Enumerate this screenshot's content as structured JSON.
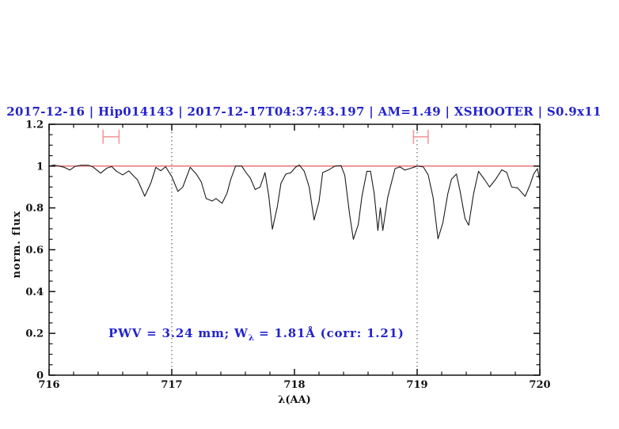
{
  "figure": {
    "annotation": {
      "prefix": "PWV = 3.24 mm; W",
      "subscript": "λ",
      "suffix": " = 1.81Å (corr: 1.21)"
    }
  },
  "chart_data": {
    "type": "line",
    "title": "2017-12-16 | Hip014143 | 2017-12-17T04:37:43.197 | AM=1.49 | XSHOOTER | S0.9x11",
    "xlabel": "λ(AA)",
    "ylabel": "norm. flux",
    "xlim": [
      716,
      720
    ],
    "ylim": [
      0,
      1.2
    ],
    "x_ticks": [
      716,
      717,
      718,
      719,
      720
    ],
    "x_tick_labels": [
      "716",
      "717",
      "718",
      "719",
      "720"
    ],
    "y_ticks": [
      0,
      0.2,
      0.4,
      0.6,
      0.8,
      1.0,
      1.2
    ],
    "y_tick_labels": [
      "0",
      "0.2",
      "0.4",
      "0.6",
      "0.8",
      "1",
      "1.2"
    ],
    "x_minor_step": 0.2,
    "y_minor_step": 0.05,
    "grid": "off",
    "legend": "none",
    "dotted_vlines_x": [
      717,
      719
    ],
    "continuum_level": 1.0,
    "colors": {
      "title_blue": "#2323cd",
      "spectrum_line": "#1c1c1c",
      "continuum_red": "#e96a6a",
      "marker_pink": "#f29b9b",
      "dotted_line": "#444444"
    },
    "range_markers": [
      {
        "x_min": 716.44,
        "x_max": 716.57,
        "y": 1.14,
        "y_half": 0.034
      },
      {
        "x_min": 718.97,
        "x_max": 719.09,
        "y": 1.14,
        "y_half": 0.034
      }
    ],
    "annotation": {
      "text": "PWV = 3.24 mm; W_λ = 1.81Å (corr: 1.21)",
      "x": 716.48,
      "y": 0.2
    },
    "series": [
      {
        "name": "observed spectrum",
        "points": [
          [
            716.0,
            1.0
          ],
          [
            716.04,
            1.005
          ],
          [
            716.08,
            1.0
          ],
          [
            716.12,
            0.995
          ],
          [
            716.17,
            0.981
          ],
          [
            716.21,
            0.998
          ],
          [
            716.26,
            1.004
          ],
          [
            716.32,
            1.004
          ],
          [
            716.36,
            0.995
          ],
          [
            716.42,
            0.966
          ],
          [
            716.47,
            0.99
          ],
          [
            716.51,
            0.998
          ],
          [
            716.55,
            0.975
          ],
          [
            716.6,
            0.958
          ],
          [
            716.65,
            0.977
          ],
          [
            716.69,
            0.952
          ],
          [
            716.72,
            0.935
          ],
          [
            716.78,
            0.856
          ],
          [
            716.83,
            0.92
          ],
          [
            716.87,
            0.994
          ],
          [
            716.91,
            0.978
          ],
          [
            716.95,
            0.997
          ],
          [
            717.0,
            0.95
          ],
          [
            717.05,
            0.879
          ],
          [
            717.09,
            0.9
          ],
          [
            717.15,
            0.994
          ],
          [
            717.2,
            0.962
          ],
          [
            717.24,
            0.925
          ],
          [
            717.28,
            0.845
          ],
          [
            717.33,
            0.833
          ],
          [
            717.36,
            0.845
          ],
          [
            717.41,
            0.822
          ],
          [
            717.45,
            0.87
          ],
          [
            717.48,
            0.935
          ],
          [
            717.52,
            1.0
          ],
          [
            717.57,
            1.0
          ],
          [
            717.61,
            0.965
          ],
          [
            717.64,
            0.943
          ],
          [
            717.68,
            0.888
          ],
          [
            717.72,
            0.9
          ],
          [
            717.76,
            0.969
          ],
          [
            717.79,
            0.86
          ],
          [
            717.82,
            0.698
          ],
          [
            717.86,
            0.805
          ],
          [
            717.89,
            0.918
          ],
          [
            717.93,
            0.962
          ],
          [
            717.97,
            0.968
          ],
          [
            718.01,
            0.995
          ],
          [
            718.04,
            1.005
          ],
          [
            718.08,
            0.975
          ],
          [
            718.12,
            0.9
          ],
          [
            718.16,
            0.742
          ],
          [
            718.2,
            0.83
          ],
          [
            718.23,
            0.969
          ],
          [
            718.28,
            0.982
          ],
          [
            718.33,
            1.0
          ],
          [
            718.38,
            1.002
          ],
          [
            718.41,
            0.956
          ],
          [
            718.45,
            0.767
          ],
          [
            718.48,
            0.65
          ],
          [
            718.52,
            0.72
          ],
          [
            718.55,
            0.855
          ],
          [
            718.59,
            0.975
          ],
          [
            718.62,
            0.975
          ],
          [
            718.65,
            0.868
          ],
          [
            718.68,
            0.692
          ],
          [
            718.7,
            0.8
          ],
          [
            718.72,
            0.692
          ],
          [
            718.76,
            0.85
          ],
          [
            718.79,
            0.92
          ],
          [
            718.82,
            0.988
          ],
          [
            718.86,
            0.996
          ],
          [
            718.9,
            0.981
          ],
          [
            718.95,
            0.99
          ],
          [
            719.0,
            1.0
          ],
          [
            719.05,
            0.996
          ],
          [
            719.09,
            0.958
          ],
          [
            719.13,
            0.85
          ],
          [
            719.17,
            0.652
          ],
          [
            719.21,
            0.73
          ],
          [
            719.25,
            0.868
          ],
          [
            719.28,
            0.937
          ],
          [
            719.32,
            0.962
          ],
          [
            719.35,
            0.88
          ],
          [
            719.39,
            0.75
          ],
          [
            719.42,
            0.717
          ],
          [
            719.46,
            0.868
          ],
          [
            719.5,
            0.975
          ],
          [
            719.55,
            0.935
          ],
          [
            719.59,
            0.9
          ],
          [
            719.64,
            0.937
          ],
          [
            719.69,
            0.982
          ],
          [
            719.73,
            0.97
          ],
          [
            719.77,
            0.9
          ],
          [
            719.82,
            0.895
          ],
          [
            719.88,
            0.855
          ],
          [
            719.92,
            0.91
          ],
          [
            719.95,
            0.962
          ],
          [
            719.98,
            0.988
          ],
          [
            720.0,
            0.93
          ]
        ]
      }
    ]
  }
}
